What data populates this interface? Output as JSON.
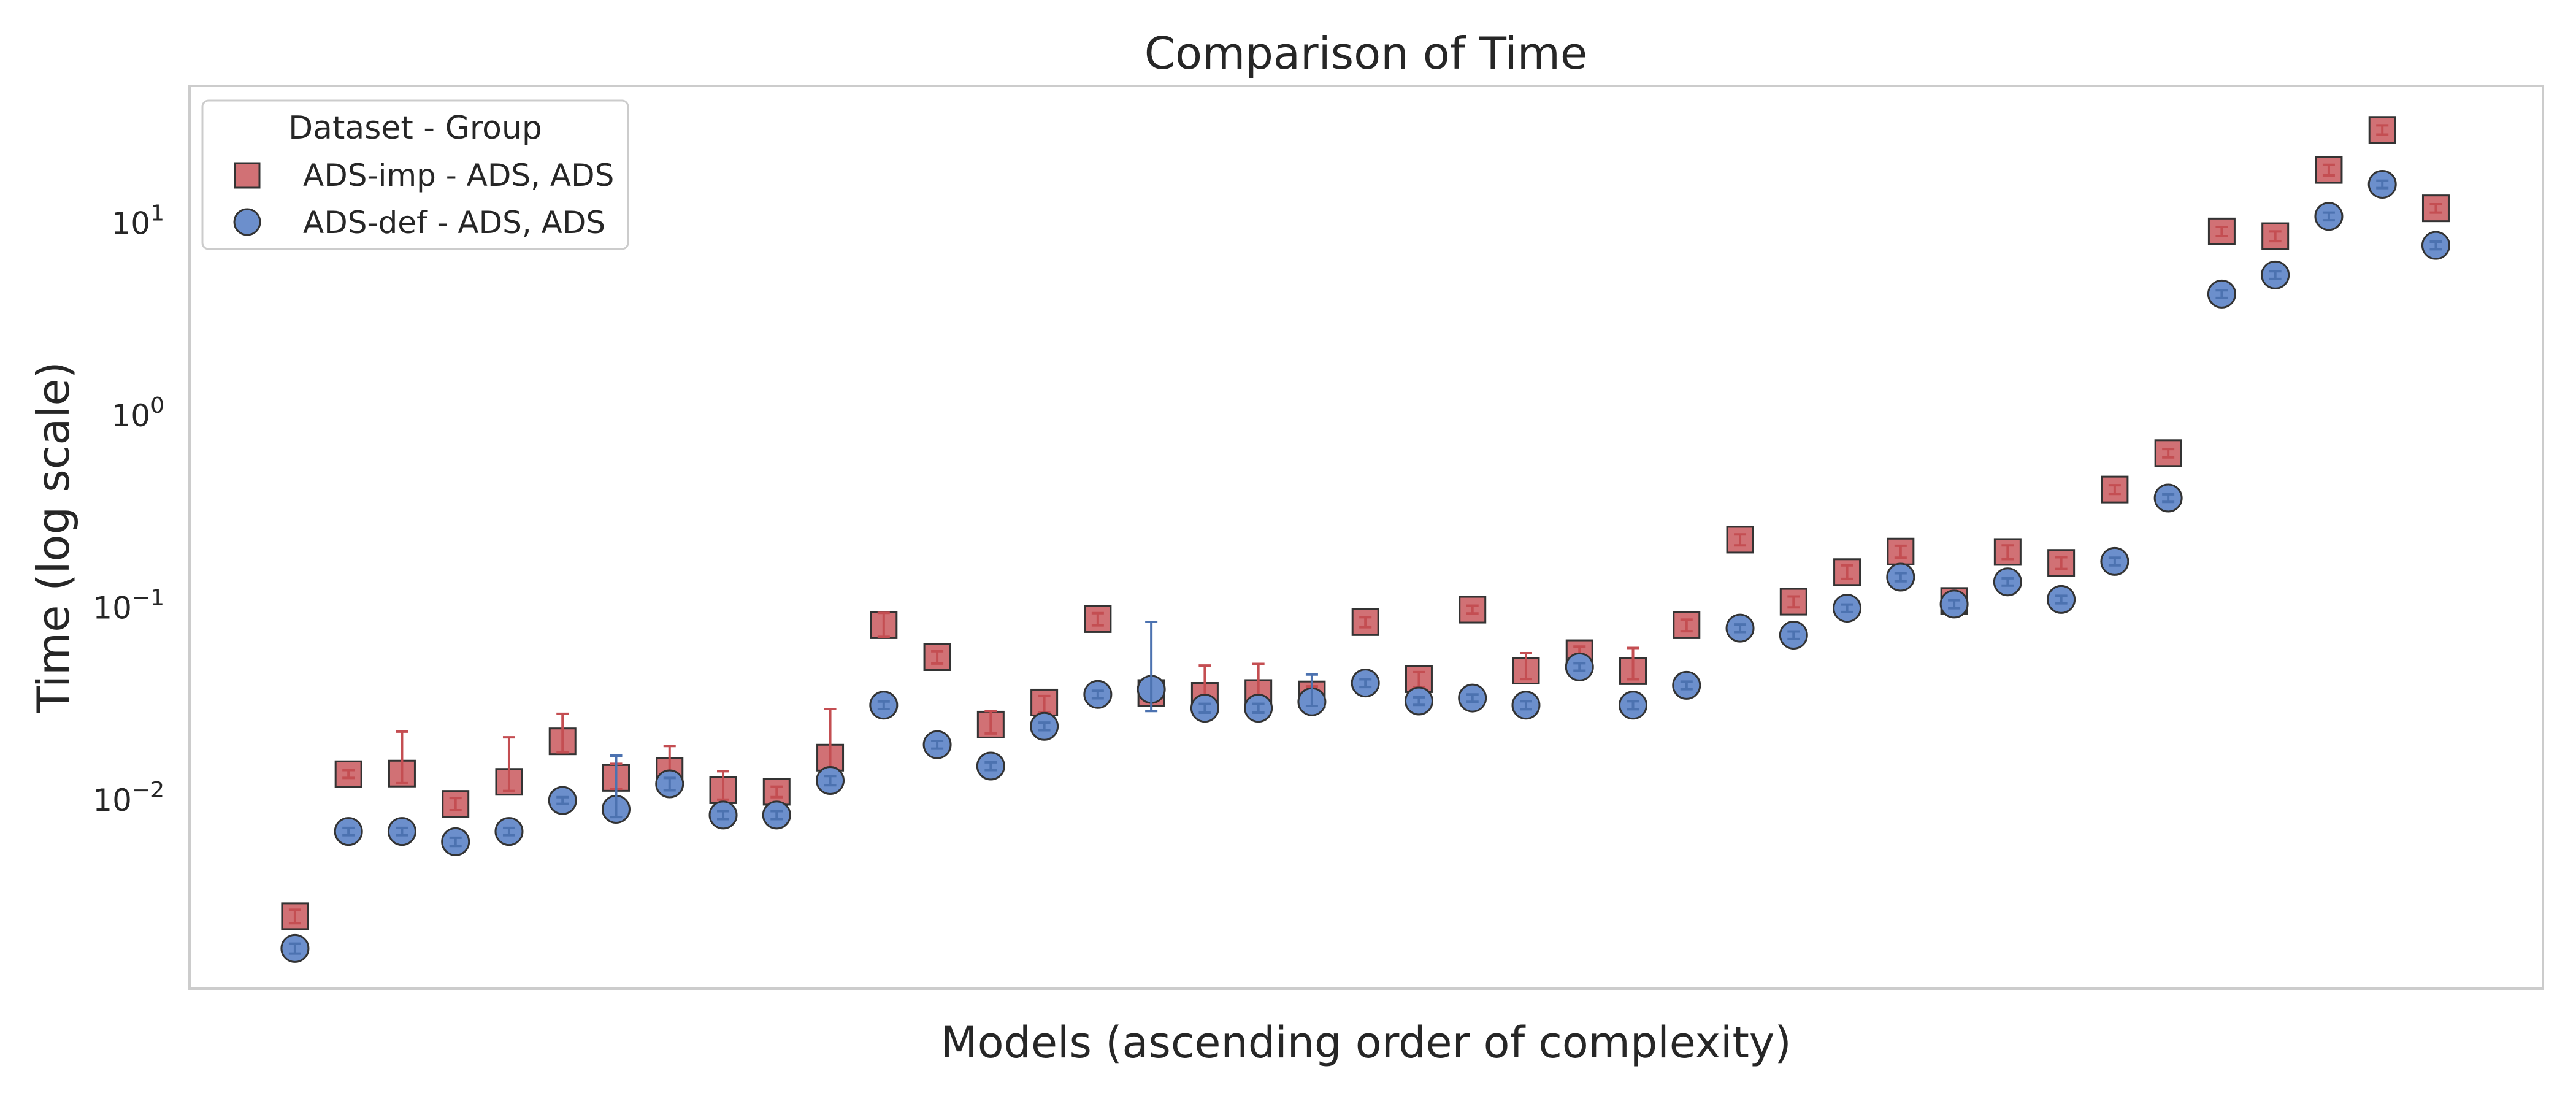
{
  "chart_data": {
    "type": "scatter",
    "title": "Comparison of Time",
    "xlabel": "Models (ascending order of complexity)",
    "ylabel": "Time (log scale)",
    "yscale": "log",
    "ylim": [
      0.00105,
      52
    ],
    "xlim": [
      -1.97,
      42.0
    ],
    "grid": false,
    "y_ticks": [
      {
        "value": 0.01,
        "base": "10",
        "exp": "−2"
      },
      {
        "value": 0.1,
        "base": "10",
        "exp": "−1"
      },
      {
        "value": 1,
        "base": "10",
        "exp": "0"
      },
      {
        "value": 10,
        "base": "10",
        "exp": "1"
      }
    ],
    "legend": {
      "title": "Dataset - Group",
      "placement": "top-left",
      "entries": [
        {
          "label": "ADS-imp - ADS, ADS",
          "marker": "square",
          "color": "#d17175"
        },
        {
          "label": "ADS-def - ADS, ADS",
          "marker": "circle",
          "color": "#6c8fcc"
        }
      ]
    },
    "series": [
      {
        "name": "ADS-imp - ADS, ADS",
        "marker": "square",
        "color": "#d17175",
        "error_color": "#c44e52",
        "x": [
          0,
          1,
          2,
          3,
          4,
          5,
          6,
          7,
          8,
          9,
          10,
          11,
          12,
          13,
          14,
          15,
          16,
          17,
          18,
          19,
          20,
          21,
          22,
          23,
          24,
          25,
          26,
          27,
          28,
          29,
          30,
          31,
          32,
          33,
          34,
          35,
          36,
          37,
          38,
          39,
          40
        ],
        "y": [
          0.0025,
          0.0137,
          0.0138,
          0.0096,
          0.0125,
          0.0203,
          0.0131,
          0.0142,
          0.0113,
          0.0111,
          0.0167,
          0.0815,
          0.0556,
          0.0248,
          0.0323,
          0.0877,
          0.0362,
          0.035,
          0.0362,
          0.0356,
          0.0846,
          0.0427,
          0.0982,
          0.0473,
          0.0583,
          0.047,
          0.0815,
          0.227,
          0.108,
          0.154,
          0.197,
          0.109,
          0.196,
          0.172,
          0.414,
          0.64,
          9.1,
          8.6,
          19.0,
          30.7,
          12.0
        ],
        "err_low": [
          0.0023,
          0.0131,
          0.0123,
          0.0089,
          0.0112,
          0.0178,
          0.0115,
          0.0126,
          0.0101,
          0.0104,
          0.0142,
          0.0709,
          0.0515,
          0.0223,
          0.0288,
          0.0814,
          0.0333,
          0.0313,
          0.0315,
          0.0323,
          0.0796,
          0.0389,
          0.0938,
          0.0428,
          0.0536,
          0.0427,
          0.0759,
          0.212,
          0.101,
          0.142,
          0.183,
          0.102,
          0.18,
          0.16,
          0.393,
          0.608,
          8.6,
          8.1,
          17.8,
          29.0,
          11.4
        ],
        "err_high": [
          0.0027,
          0.0144,
          0.0228,
          0.0103,
          0.0213,
          0.0282,
          0.0155,
          0.0192,
          0.0142,
          0.0118,
          0.0299,
          0.0945,
          0.0597,
          0.0292,
          0.0349,
          0.0942,
          0.0393,
          0.0503,
          0.0513,
          0.0392,
          0.0897,
          0.0465,
          0.103,
          0.0583,
          0.0631,
          0.0621,
          0.0871,
          0.242,
          0.115,
          0.167,
          0.211,
          0.116,
          0.212,
          0.184,
          0.436,
          0.672,
          9.6,
          9.1,
          20.2,
          32.4,
          12.6
        ]
      },
      {
        "name": "ADS-def - ADS, ADS",
        "marker": "circle",
        "color": "#6c8fcc",
        "error_color": "#4c72b0",
        "x": [
          0,
          1,
          2,
          3,
          4,
          5,
          6,
          7,
          8,
          9,
          10,
          11,
          12,
          13,
          14,
          15,
          16,
          17,
          18,
          19,
          20,
          21,
          22,
          23,
          24,
          25,
          26,
          27,
          28,
          29,
          30,
          31,
          32,
          33,
          34,
          35,
          36,
          37,
          38,
          39,
          40
        ],
        "y": [
          0.0017,
          0.0069,
          0.0069,
          0.0061,
          0.0069,
          0.01,
          0.009,
          0.0122,
          0.0084,
          0.0084,
          0.0127,
          0.0313,
          0.0195,
          0.0151,
          0.0243,
          0.0356,
          0.0378,
          0.0302,
          0.0302,
          0.0326,
          0.0408,
          0.0329,
          0.0341,
          0.0313,
          0.0495,
          0.0313,
          0.0397,
          0.0787,
          0.0724,
          0.1,
          0.145,
          0.105,
          0.137,
          0.111,
          0.175,
          0.374,
          4.3,
          5.4,
          10.9,
          16.0,
          7.7
        ],
        "err_low": [
          0.0016,
          0.0066,
          0.0066,
          0.0058,
          0.0066,
          0.0096,
          0.0082,
          0.0113,
          0.008,
          0.008,
          0.012,
          0.0299,
          0.0186,
          0.0144,
          0.0232,
          0.034,
          0.0292,
          0.0286,
          0.0286,
          0.031,
          0.0389,
          0.0314,
          0.0326,
          0.0298,
          0.0473,
          0.0298,
          0.0379,
          0.0751,
          0.0691,
          0.0955,
          0.138,
          0.1,
          0.131,
          0.106,
          0.167,
          0.357,
          4.1,
          5.15,
          10.4,
          15.3,
          7.35
        ],
        "err_high": [
          0.0018,
          0.0072,
          0.0072,
          0.0064,
          0.0072,
          0.0104,
          0.0171,
          0.0131,
          0.0088,
          0.0088,
          0.0134,
          0.0327,
          0.0204,
          0.0158,
          0.0254,
          0.0372,
          0.0848,
          0.0318,
          0.0318,
          0.0452,
          0.0427,
          0.0344,
          0.0356,
          0.0328,
          0.0517,
          0.0328,
          0.0415,
          0.0823,
          0.0757,
          0.1045,
          0.152,
          0.11,
          0.143,
          0.116,
          0.183,
          0.391,
          4.5,
          5.65,
          11.4,
          16.7,
          8.05
        ]
      }
    ]
  }
}
